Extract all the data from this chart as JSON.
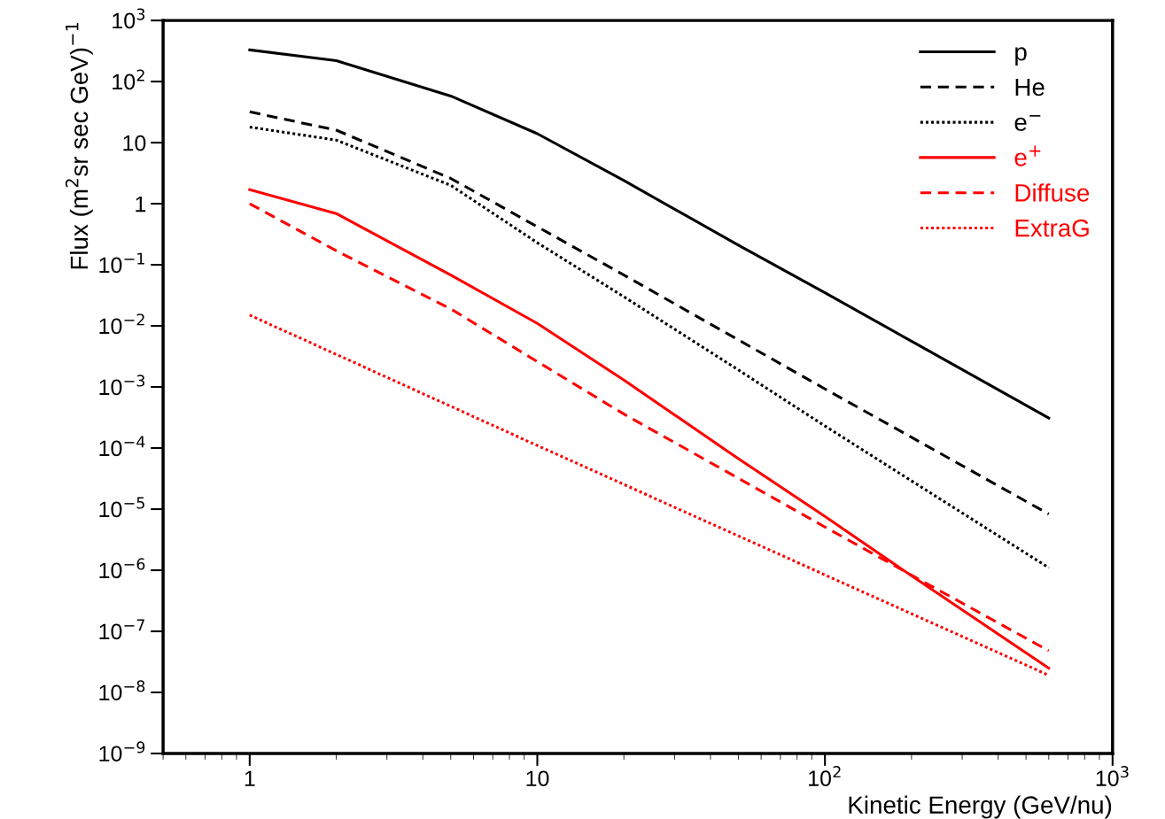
{
  "chart_data": {
    "type": "line",
    "xlabel": "Kinetic Energy (GeV/nu)",
    "ylabel": "Flux (m$^{2}$sr sec GeV)$^{−1}$",
    "log": "xy",
    "grid": false,
    "legend": "top right",
    "marker": "none",
    "xlim": [
      0.5,
      1000
    ],
    "ylim": [
      1e-09,
      1000
    ],
    "xticks": [
      1,
      10,
      {
        "value": 100,
        "label": "10$^{2}$"
      },
      {
        "value": 1000,
        "label": "10$^{3}$"
      }
    ],
    "yticks": [
      {
        "value": 1e-09,
        "label": "10$^{−9}$"
      },
      {
        "value": 1e-08,
        "label": "10$^{−8}$"
      },
      {
        "value": 1e-07,
        "label": "10$^{−7}$"
      },
      {
        "value": 1e-06,
        "label": "10$^{−6}$"
      },
      {
        "value": 1e-05,
        "label": "10$^{−5}$"
      },
      {
        "value": 0.0001,
        "label": "10$^{−4}$"
      },
      {
        "value": 0.001,
        "label": "10$^{−3}$"
      },
      {
        "value": 0.01,
        "label": "10$^{−2}$"
      },
      {
        "value": 0.1,
        "label": "10$^{−1}$"
      },
      1,
      10,
      {
        "value": 100,
        "label": "10$^{2}$"
      },
      {
        "value": 1000,
        "label": "10$^{3}$"
      }
    ],
    "x": [
      1,
      2,
      5,
      10,
      20,
      50,
      100,
      200,
      600
    ],
    "series": [
      {
        "name": "p",
        "color": "#000000",
        "line_style": "solid",
        "values": [
          330,
          220,
          58,
          14,
          2.4,
          0.21,
          0.035,
          0.0056,
          0.00031
        ]
      },
      {
        "name": "He",
        "color": "#000000",
        "line_style": "dashed",
        "values": [
          32,
          16,
          2.6,
          0.42,
          0.068,
          0.0059,
          0.00093,
          0.00015,
          8.3e-06
        ]
      },
      {
        "name": "e$^{−}$",
        "color": "#000000",
        "line_style": "dotted",
        "values": [
          18,
          11,
          2.0,
          0.23,
          0.03,
          0.0019,
          0.00023,
          2.9e-05,
          1.1e-06
        ]
      },
      {
        "name": "e$^{+}$",
        "color": "#ff0000",
        "line_style": "solid",
        "values": [
          1.7,
          0.69,
          0.068,
          0.011,
          0.0013,
          6.7e-05,
          7.6e-06,
          8.1e-07,
          2.5e-08
        ]
      },
      {
        "name": "Diffuse",
        "color": "#ff0000",
        "line_style": "dashed",
        "values": [
          1.0,
          0.17,
          0.019,
          0.0026,
          0.00036,
          3.2e-05,
          5.1e-06,
          8.3e-07,
          4.8e-08
        ]
      },
      {
        "name": "ExtraG",
        "color": "#ff0000",
        "line_style": "dotted",
        "values": [
          0.015,
          null,
          null,
          0.00011,
          null,
          null,
          8.4e-07,
          null,
          1.9e-08
        ]
      }
    ]
  }
}
